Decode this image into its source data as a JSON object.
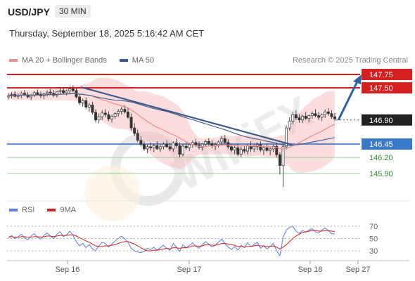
{
  "header": {
    "symbol": "USD/JPY",
    "interval": "30 MIN"
  },
  "datetime": "Thursday, September 18, 2025 5:16:42 AM CET",
  "copyright": "Research © 2025 Trading Central",
  "watermark": "WikiFX",
  "legend": {
    "main": [
      {
        "name": "MA 20 + Bollinger Bands",
        "color": "#f08f8f"
      },
      {
        "name": "MA 50",
        "color": "#3c5a8a"
      }
    ],
    "rsi": [
      {
        "name": "RSI",
        "color": "#5a7fd6"
      },
      {
        "name": "9MA",
        "color": "#d62020"
      }
    ]
  },
  "chart_data": [
    {
      "type": "candlestick",
      "x": [
        "Sep 16",
        "Sep 17",
        "Sep 18",
        "Sep 27"
      ],
      "price_levels": [
        {
          "value": 147.75,
          "label": "147.75",
          "color": "#d62020",
          "style": "resistance"
        },
        {
          "value": 147.5,
          "label": "147.50",
          "color": "#d62020",
          "style": "resistance"
        },
        {
          "value": 146.9,
          "label": "146.90",
          "color": "#222222",
          "style": "last-price"
        },
        {
          "value": 146.45,
          "label": "146.45",
          "color": "#3a78c8",
          "style": "pivot"
        },
        {
          "value": 146.2,
          "label": "146.20",
          "color": "#2e8b2e",
          "style": "support"
        },
        {
          "value": 145.9,
          "label": "145.90",
          "color": "#2e8b2e",
          "style": "support"
        }
      ],
      "candles": [
        [
          147.33,
          147.4,
          147.28,
          147.35
        ],
        [
          147.35,
          147.42,
          147.3,
          147.38
        ],
        [
          147.38,
          147.44,
          147.32,
          147.34
        ],
        [
          147.34,
          147.4,
          147.29,
          147.36
        ],
        [
          147.36,
          147.43,
          147.31,
          147.4
        ],
        [
          147.4,
          147.46,
          147.35,
          147.37
        ],
        [
          147.37,
          147.42,
          147.3,
          147.33
        ],
        [
          147.33,
          147.39,
          147.27,
          147.36
        ],
        [
          147.36,
          147.44,
          147.33,
          147.41
        ],
        [
          147.41,
          147.47,
          147.36,
          147.38
        ],
        [
          147.38,
          147.43,
          147.31,
          147.35
        ],
        [
          147.35,
          147.41,
          147.29,
          147.39
        ],
        [
          147.39,
          147.45,
          147.34,
          147.42
        ],
        [
          147.42,
          147.48,
          147.37,
          147.4
        ],
        [
          147.4,
          147.46,
          147.33,
          147.36
        ],
        [
          147.36,
          147.44,
          147.32,
          147.43
        ],
        [
          147.43,
          147.5,
          147.38,
          147.45
        ],
        [
          147.45,
          147.52,
          147.39,
          147.41
        ],
        [
          147.41,
          147.47,
          147.36,
          147.44
        ],
        [
          147.44,
          147.53,
          147.4,
          147.48
        ],
        [
          147.48,
          147.55,
          147.42,
          147.45
        ],
        [
          147.45,
          147.5,
          147.3,
          147.33
        ],
        [
          147.33,
          147.38,
          147.18,
          147.22
        ],
        [
          147.22,
          147.3,
          147.15,
          147.26
        ],
        [
          147.26,
          147.32,
          147.1,
          147.14
        ],
        [
          147.14,
          147.22,
          147.05,
          147.18
        ],
        [
          147.18,
          147.24,
          147.0,
          147.04
        ],
        [
          147.04,
          147.1,
          146.85,
          146.9
        ],
        [
          146.9,
          147.02,
          146.84,
          146.96
        ],
        [
          146.96,
          147.08,
          146.9,
          147.03
        ],
        [
          147.03,
          147.1,
          146.95,
          147.0
        ],
        [
          147.0,
          147.06,
          146.88,
          146.92
        ],
        [
          146.92,
          147.0,
          146.85,
          146.97
        ],
        [
          146.97,
          147.05,
          146.92,
          147.02
        ],
        [
          147.02,
          147.1,
          146.96,
          147.06
        ],
        [
          147.06,
          147.15,
          147.0,
          147.1
        ],
        [
          147.1,
          147.18,
          147.02,
          147.05
        ],
        [
          147.05,
          147.12,
          146.92,
          146.95
        ],
        [
          146.95,
          147.02,
          146.7,
          146.75
        ],
        [
          146.75,
          146.84,
          146.6,
          146.65
        ],
        [
          146.65,
          146.72,
          146.48,
          146.52
        ],
        [
          146.52,
          146.6,
          146.4,
          146.44
        ],
        [
          146.44,
          146.5,
          146.32,
          146.36
        ],
        [
          146.36,
          146.44,
          146.28,
          146.4
        ],
        [
          146.4,
          146.48,
          146.33,
          146.38
        ],
        [
          146.38,
          146.46,
          146.3,
          146.42
        ],
        [
          146.42,
          146.5,
          146.34,
          146.36
        ],
        [
          146.36,
          146.44,
          146.3,
          146.4
        ],
        [
          146.4,
          146.48,
          146.35,
          146.45
        ],
        [
          146.45,
          146.52,
          146.38,
          146.4
        ],
        [
          146.4,
          146.47,
          146.32,
          146.36
        ],
        [
          146.36,
          146.5,
          146.3,
          146.47
        ],
        [
          146.47,
          146.55,
          146.38,
          146.42
        ],
        [
          146.42,
          146.48,
          146.2,
          146.26
        ],
        [
          146.26,
          146.45,
          146.22,
          146.41
        ],
        [
          146.41,
          146.48,
          146.34,
          146.38
        ],
        [
          146.38,
          146.46,
          146.32,
          146.44
        ],
        [
          146.44,
          146.52,
          146.38,
          146.48
        ],
        [
          146.48,
          146.55,
          146.4,
          146.43
        ],
        [
          146.43,
          146.5,
          146.35,
          146.39
        ],
        [
          146.39,
          146.47,
          146.33,
          146.45
        ],
        [
          146.45,
          146.53,
          146.4,
          146.5
        ],
        [
          146.5,
          146.56,
          146.42,
          146.46
        ],
        [
          146.46,
          146.52,
          146.37,
          146.41
        ],
        [
          146.41,
          146.48,
          146.34,
          146.44
        ],
        [
          146.44,
          146.52,
          146.39,
          146.49
        ],
        [
          146.49,
          146.6,
          146.44,
          146.55
        ],
        [
          146.55,
          146.62,
          146.45,
          146.48
        ],
        [
          146.48,
          146.54,
          146.36,
          146.4
        ],
        [
          146.4,
          146.46,
          146.3,
          146.34
        ],
        [
          146.34,
          146.42,
          146.26,
          146.38
        ],
        [
          146.38,
          146.45,
          146.22,
          146.26
        ],
        [
          146.26,
          146.4,
          146.2,
          146.35
        ],
        [
          146.35,
          146.42,
          146.28,
          146.32
        ],
        [
          146.32,
          146.45,
          146.26,
          146.42
        ],
        [
          146.42,
          146.5,
          146.3,
          146.36
        ],
        [
          146.36,
          146.44,
          146.3,
          146.4
        ],
        [
          146.4,
          146.48,
          146.34,
          146.44
        ],
        [
          146.44,
          146.5,
          146.3,
          146.34
        ],
        [
          146.34,
          146.42,
          146.25,
          146.38
        ],
        [
          146.38,
          146.45,
          146.3,
          146.33
        ],
        [
          146.33,
          146.4,
          146.24,
          146.36
        ],
        [
          146.36,
          146.44,
          146.3,
          146.41
        ],
        [
          146.41,
          146.48,
          146.2,
          146.25
        ],
        [
          146.25,
          146.3,
          145.88,
          146.05
        ],
        [
          146.05,
          146.45,
          145.65,
          146.4
        ],
        [
          146.4,
          146.8,
          146.35,
          146.75
        ],
        [
          146.75,
          146.95,
          146.7,
          146.88
        ],
        [
          146.88,
          147.05,
          146.82,
          147.0
        ],
        [
          147.0,
          147.08,
          146.9,
          146.94
        ],
        [
          146.94,
          147.0,
          146.85,
          146.9
        ],
        [
          146.9,
          147.0,
          146.84,
          146.97
        ],
        [
          146.97,
          147.05,
          146.9,
          146.93
        ],
        [
          146.93,
          147.0,
          146.86,
          146.98
        ],
        [
          146.98,
          147.06,
          146.92,
          147.02
        ],
        [
          147.02,
          147.1,
          146.95,
          146.98
        ],
        [
          146.98,
          147.05,
          146.9,
          146.95
        ],
        [
          146.95,
          147.02,
          146.88,
          147.0
        ],
        [
          147.0,
          147.1,
          146.94,
          147.05
        ],
        [
          147.05,
          147.12,
          146.98,
          147.02
        ],
        [
          147.02,
          147.08,
          146.92,
          146.96
        ],
        [
          146.96,
          147.03,
          146.88,
          146.92
        ]
      ]
    },
    {
      "type": "line",
      "series": [
        {
          "name": "RSI",
          "color": "#5a7fd6",
          "values": [
            52,
            55,
            50,
            53,
            57,
            51,
            48,
            54,
            58,
            52,
            49,
            55,
            59,
            54,
            50,
            57,
            61,
            53,
            56,
            62,
            55,
            45,
            38,
            42,
            35,
            40,
            33,
            30,
            38,
            44,
            42,
            36,
            41,
            46,
            50,
            54,
            49,
            44,
            34,
            30,
            28,
            27,
            29,
            34,
            32,
            36,
            31,
            35,
            39,
            34,
            31,
            42,
            36,
            29,
            40,
            35,
            39,
            43,
            37,
            34,
            40,
            45,
            41,
            36,
            39,
            44,
            49,
            42,
            36,
            32,
            37,
            31,
            39,
            35,
            43,
            37,
            40,
            44,
            34,
            38,
            33,
            37,
            42,
            30,
            22,
            52,
            64,
            68,
            70,
            62,
            58,
            63,
            60,
            64,
            66,
            61,
            59,
            64,
            67,
            63,
            58,
            57
          ]
        },
        {
          "name": "9MA",
          "color": "#d62020",
          "values": [
            52,
            53,
            52,
            52,
            53,
            53,
            52,
            52,
            53,
            53,
            52,
            53,
            54,
            54,
            53,
            54,
            55,
            55,
            55,
            56,
            56,
            54,
            51,
            49,
            46,
            44,
            41,
            38,
            37,
            37,
            38,
            38,
            39,
            40,
            42,
            44,
            45,
            45,
            43,
            41,
            38,
            35,
            32,
            30,
            30,
            31,
            31,
            32,
            33,
            34,
            33,
            35,
            35,
            34,
            35,
            35,
            36,
            38,
            38,
            37,
            38,
            40,
            40,
            39,
            39,
            40,
            42,
            42,
            41,
            40,
            39,
            37,
            37,
            36,
            37,
            37,
            38,
            39,
            38,
            38,
            37,
            37,
            38,
            36,
            33,
            36,
            40,
            45,
            50,
            54,
            57,
            60,
            61,
            62,
            63,
            63,
            62,
            62,
            63,
            63,
            62,
            61
          ]
        }
      ],
      "ytick_labels": [
        "70",
        "50",
        "30"
      ],
      "ylim": [
        20,
        80
      ]
    }
  ],
  "x_tick_labels": [
    "Sep 16",
    "Sep 17",
    "Sep 18",
    "Sep 27"
  ]
}
